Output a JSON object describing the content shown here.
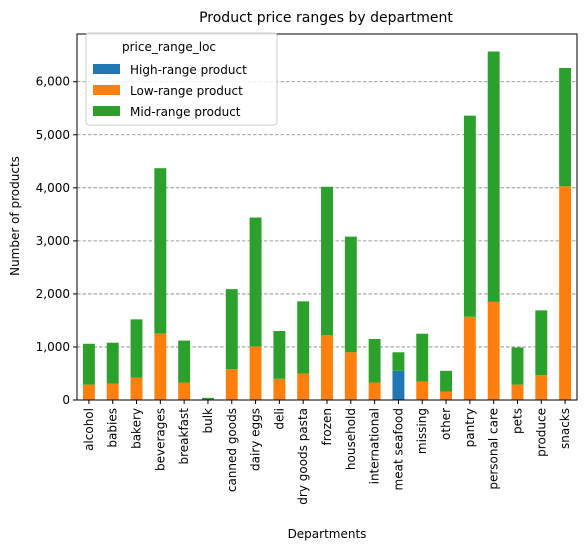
{
  "chart_data": {
    "type": "bar",
    "stacked": true,
    "title": "Product price ranges by department",
    "xlabel": "Departments",
    "ylabel": "Number of products",
    "ylim": [
      0,
      6900
    ],
    "yticks": [
      0,
      1000,
      2000,
      3000,
      4000,
      5000,
      6000
    ],
    "ytick_labels": [
      "0",
      "1,000",
      "2,000",
      "3,000",
      "4,000",
      "5,000",
      "6,000"
    ],
    "grid": "y-dashed",
    "legend": {
      "title": "price_range_loc",
      "placement": "top-left"
    },
    "categories": [
      "alcohol",
      "babies",
      "bakery",
      "beverages",
      "breakfast",
      "bulk",
      "canned goods",
      "dairy eggs",
      "deli",
      "dry goods pasta",
      "frozen",
      "household",
      "international",
      "meat seafood",
      "missing",
      "other",
      "pantry",
      "personal care",
      "pets",
      "produce",
      "snacks"
    ],
    "series": [
      {
        "name": "High-range product",
        "color": "#1f77b4",
        "values": [
          0,
          0,
          0,
          0,
          0,
          0,
          0,
          0,
          0,
          0,
          0,
          0,
          0,
          550,
          0,
          0,
          0,
          0,
          0,
          0,
          0
        ]
      },
      {
        "name": "Low-range product",
        "color": "#ff7f0e",
        "values": [
          290,
          310,
          420,
          1250,
          330,
          10,
          580,
          1010,
          400,
          500,
          1220,
          900,
          330,
          0,
          350,
          160,
          1570,
          1850,
          290,
          470,
          4030
        ]
      },
      {
        "name": "Mid-range product",
        "color": "#2ca02c",
        "values": [
          770,
          770,
          1100,
          3120,
          790,
          30,
          1510,
          2430,
          900,
          1360,
          2800,
          2180,
          820,
          350,
          900,
          390,
          3790,
          4720,
          700,
          1220,
          2230
        ]
      }
    ]
  }
}
